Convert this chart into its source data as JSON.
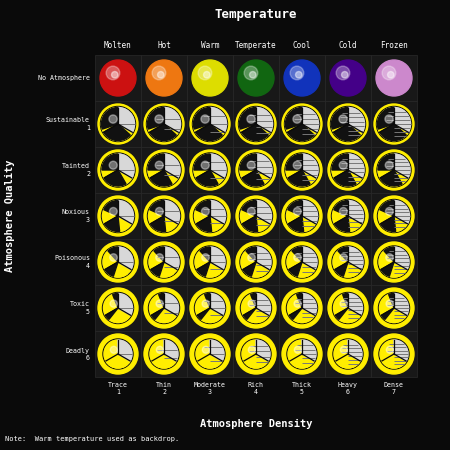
{
  "title": "Temperature",
  "xlabel": "Atmosphere Density",
  "ylabel": "Atmosphere Quality",
  "note": "Note:  Warm temperature used as backdrop.",
  "temp_labels": [
    "Molten",
    "Hot",
    "Warm",
    "Temperate",
    "Cool",
    "Cold",
    "Frozen"
  ],
  "atm_quality_labels": [
    "No Atmosphere",
    "Sustainable\n1",
    "Tainted\n2",
    "Noxious\n3",
    "Poisonous\n4",
    "Toxic\n5",
    "Deadly\n6"
  ],
  "atm_density_labels": [
    "Trace\n1",
    "Thin\n2",
    "Moderate\n3",
    "Rich\n4",
    "Thick\n5",
    "Heavy\n6",
    "Dense\n7"
  ],
  "no_atm_colors": [
    "#cc1111",
    "#ee7711",
    "#dddd00",
    "#116611",
    "#1133bb",
    "#440088",
    "#cc88cc"
  ],
  "bg_color": "#0a0a0a",
  "cell_color": "#181818",
  "grid_color": "#2a2a2a",
  "text_color": "#ffffff",
  "yellow": "#ffee00",
  "yellow_dark": "#ccbb00",
  "stripe_color": "#777777",
  "white_sphere": "#cccccc",
  "n_cols": 7,
  "n_rows": 7
}
